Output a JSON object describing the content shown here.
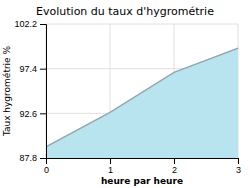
{
  "chart_data": {
    "type": "area",
    "title": "Evolution du taux d'hygrométrie",
    "x_label": "heure par heure",
    "y_label": "Taux hygrométrie %",
    "x": [
      0,
      1,
      2,
      3
    ],
    "values": [
      89.0,
      92.7,
      97.0,
      99.6
    ],
    "color": "#b8e4f0",
    "xlim": [
      0,
      3
    ],
    "ylim": [
      87.8,
      102.2
    ],
    "xticks": [
      0,
      1,
      2,
      3
    ],
    "yticks": [
      87.8,
      92.6,
      97.4,
      102.2
    ],
    "grid": true
  }
}
